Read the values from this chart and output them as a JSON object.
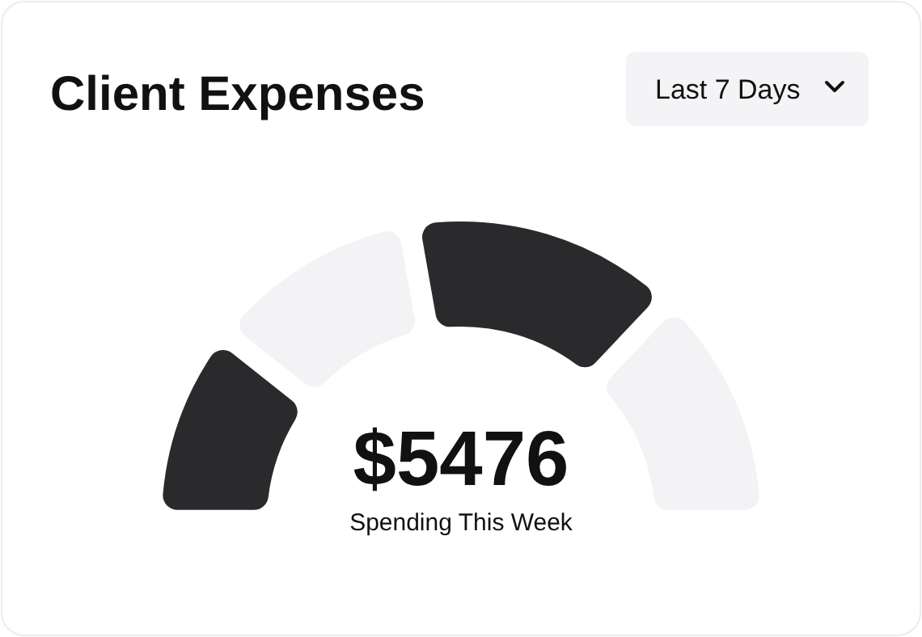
{
  "chart_data": {
    "type": "donut",
    "title": "Client Expenses",
    "categories": [
      null,
      null,
      null,
      null
    ],
    "values": [
      21,
      23,
      30,
      26
    ],
    "colors": [
      "#2a292b",
      "#f3f2f4",
      "#2a292b",
      "#f3f2f4"
    ],
    "annotations": [
      "$5476",
      "Spending This Week",
      "Last 7 Days"
    ]
  }
}
